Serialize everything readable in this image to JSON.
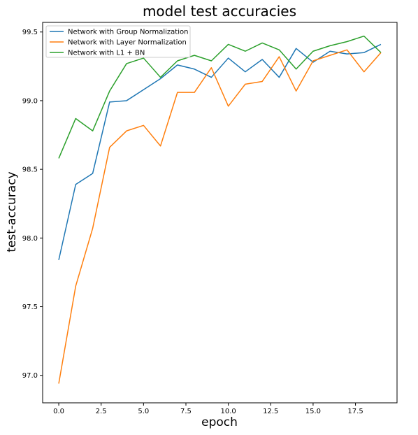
{
  "chart_data": {
    "type": "line",
    "title": "model test accuracies",
    "xlabel": "epoch",
    "ylabel": "test-accuracy",
    "xlim": [
      -0.95,
      19.95
    ],
    "ylim": [
      96.8,
      99.57
    ],
    "xticks": [
      "0.0",
      "2.5",
      "5.0",
      "7.5",
      "10.0",
      "12.5",
      "15.0",
      "17.5"
    ],
    "xtick_values": [
      0,
      2.5,
      5,
      7.5,
      10,
      12.5,
      15,
      17.5
    ],
    "yticks": [
      "97.0",
      "97.5",
      "98.0",
      "98.5",
      "99.0",
      "99.5"
    ],
    "ytick_values": [
      97.0,
      97.5,
      98.0,
      98.5,
      99.0,
      99.5
    ],
    "grid": false,
    "legend_position": "top-left",
    "x": [
      0,
      1,
      2,
      3,
      4,
      5,
      6,
      7,
      8,
      9,
      10,
      11,
      12,
      13,
      14,
      15,
      16,
      17,
      18,
      19
    ],
    "series": [
      {
        "name": "Network with Group Normalization",
        "color": "#1f77b4",
        "values": [
          97.84,
          98.39,
          98.47,
          98.99,
          99.0,
          99.08,
          99.16,
          99.26,
          99.23,
          99.17,
          99.31,
          99.21,
          99.3,
          99.17,
          99.38,
          99.28,
          99.36,
          99.34,
          99.35,
          99.41
        ]
      },
      {
        "name": "Network with Layer Normalization",
        "color": "#ff7f0e",
        "values": [
          96.94,
          97.65,
          98.07,
          98.66,
          98.78,
          98.82,
          98.67,
          99.06,
          99.06,
          99.24,
          98.96,
          99.12,
          99.14,
          99.32,
          99.07,
          99.29,
          99.33,
          99.37,
          99.21,
          99.35
        ]
      },
      {
        "name": "Network with L1 + BN",
        "color": "#2ca02c",
        "values": [
          98.58,
          98.87,
          98.78,
          99.07,
          99.27,
          99.31,
          99.17,
          99.29,
          99.33,
          99.29,
          99.41,
          99.36,
          99.42,
          99.37,
          99.23,
          99.36,
          99.4,
          99.43,
          99.47,
          99.35
        ]
      }
    ]
  }
}
